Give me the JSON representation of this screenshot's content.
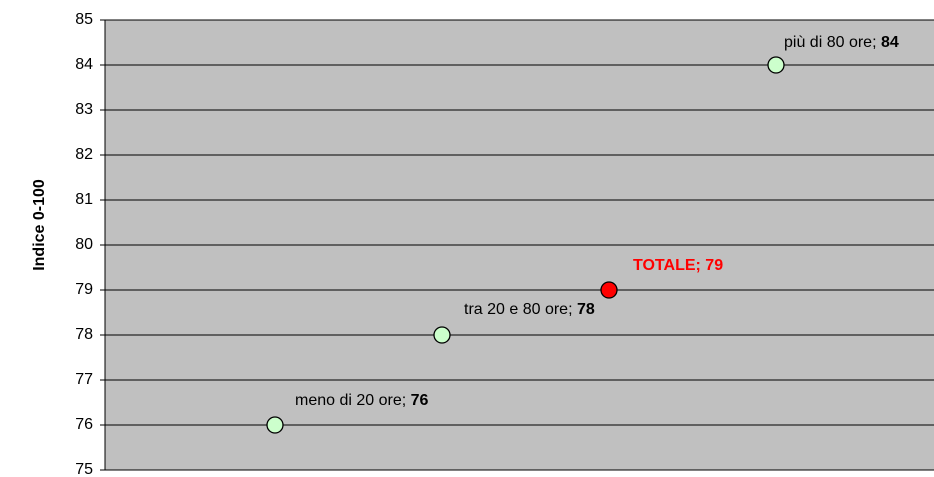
{
  "chart_data": {
    "type": "scatter",
    "y_label": "Indice 0-100",
    "categories": [
      "meno di 20 ore",
      "tra 20 e 80 ore",
      "TOTALE",
      "più di 80 ore"
    ],
    "values": [
      76,
      78,
      79,
      84
    ],
    "colors": [
      "#ccffcc",
      "#ccffcc",
      "#ff0000",
      "#ccffcc"
    ],
    "label_colors": [
      "#000000",
      "#000000",
      "#ff0000",
      "#000000"
    ],
    "label_separator": "; ",
    "ylim": [
      75,
      85
    ],
    "yticks": [
      75,
      76,
      77,
      78,
      79,
      80,
      81,
      82,
      83,
      84,
      85
    ],
    "grid": true,
    "plot_background": "#c0c0c0"
  }
}
